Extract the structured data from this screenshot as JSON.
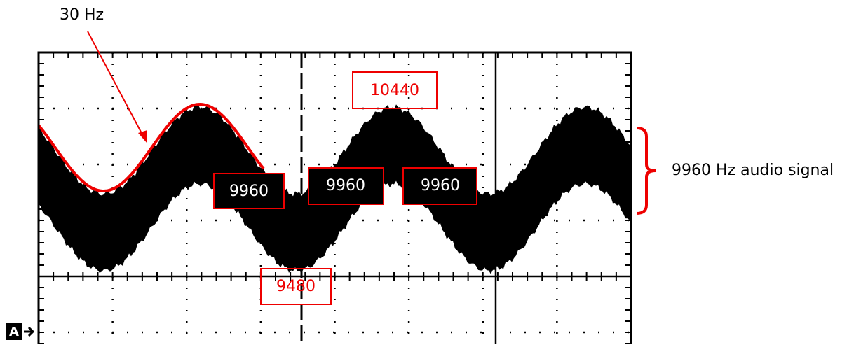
{
  "annotations": {
    "frequency_note": "30 Hz",
    "peak_label": "10440",
    "mid_labels": [
      "9960",
      "9960",
      "9960"
    ],
    "trough_label": "9480",
    "signal_label": "9960 Hz audio signal",
    "channel_marker": "A"
  }
}
